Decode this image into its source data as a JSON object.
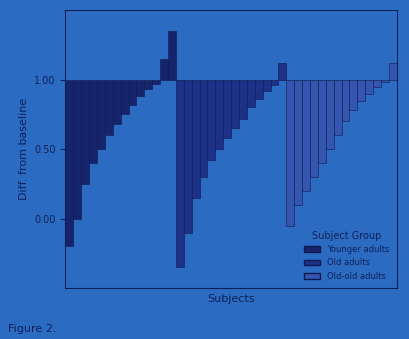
{
  "chart_data": {
    "type": "bar",
    "x_label": "Subjects",
    "y_label": "Diff. from baseline",
    "caption": "Figure 2.",
    "legend_title": "Subject Group",
    "legend": "lower right",
    "tick_labels": "y",
    "baseline": 1.0,
    "ylim": [
      -0.5,
      1.5
    ],
    "yticks": [
      {
        "value": 0.0,
        "label": "0.00"
      },
      {
        "value": 0.5,
        "label": "0.50"
      },
      {
        "value": 1.0,
        "label": "1.00"
      }
    ],
    "categories": [
      null,
      null,
      null,
      null,
      null,
      null,
      null,
      null,
      null,
      null,
      null,
      null,
      null,
      null,
      null,
      null,
      null,
      null,
      null,
      null,
      null,
      null,
      null,
      null,
      null,
      null,
      null,
      null,
      null,
      null,
      null,
      null,
      null,
      null,
      null,
      null,
      null,
      null,
      null,
      null,
      null,
      null
    ],
    "series": [
      {
        "name": "Younger adults",
        "color": "#16246e",
        "values": [
          -0.2,
          0.0,
          0.25,
          0.4,
          0.5,
          0.6,
          0.68,
          0.75,
          0.82,
          0.88,
          0.93,
          0.97,
          1.15,
          1.35,
          null,
          null,
          null,
          null,
          null,
          null,
          null,
          null,
          null,
          null,
          null,
          null,
          null,
          null,
          null,
          null,
          null,
          null,
          null,
          null,
          null,
          null,
          null,
          null,
          null,
          null,
          null,
          null
        ]
      },
      {
        "name": "Old adults",
        "color": "#1e3188",
        "values": [
          null,
          null,
          null,
          null,
          null,
          null,
          null,
          null,
          null,
          null,
          null,
          null,
          null,
          null,
          -0.35,
          -0.1,
          0.15,
          0.3,
          0.42,
          0.5,
          0.58,
          0.65,
          0.72,
          0.8,
          0.86,
          0.92,
          0.96,
          1.12,
          null,
          null,
          null,
          null,
          null,
          null,
          null,
          null,
          null,
          null,
          null,
          null,
          null,
          null
        ]
      },
      {
        "name": "Old-old adults",
        "color": "#3556b0",
        "values": [
          null,
          null,
          null,
          null,
          null,
          null,
          null,
          null,
          null,
          null,
          null,
          null,
          null,
          null,
          null,
          null,
          null,
          null,
          null,
          null,
          null,
          null,
          null,
          null,
          null,
          null,
          null,
          null,
          -0.05,
          0.1,
          0.2,
          0.3,
          0.4,
          0.5,
          0.6,
          0.7,
          0.78,
          0.85,
          0.9,
          0.95,
          0.98,
          1.12
        ]
      }
    ]
  }
}
